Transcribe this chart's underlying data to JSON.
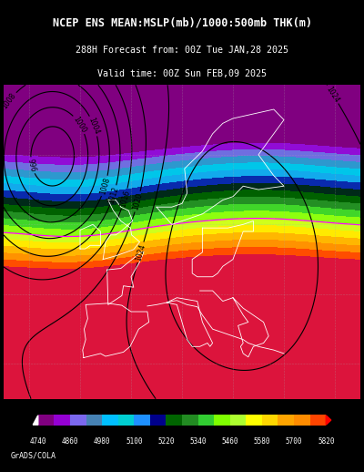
{
  "title_line1": "NCEP ENS MEAN:MSLP(mb)/1000:500mb THK(m)",
  "title_line2": "288H Forecast from: 00Z Tue JAN,28 2025",
  "title_line3": "Valid time: 00Z Sun FEB,09 2025",
  "colorbar_values": [
    4740,
    4860,
    4980,
    5100,
    5220,
    5340,
    5460,
    5580,
    5700,
    5820
  ],
  "colorbar_colors": [
    "#9400D3",
    "#8B00FF",
    "#7B68EE",
    "#6495ED",
    "#00BFFF",
    "#00CED1",
    "#1E90FF",
    "#00008B",
    "#006400",
    "#228B22",
    "#32CD32",
    "#7CFC00",
    "#ADFF2F",
    "#FFFF00",
    "#FFD700",
    "#FFA500",
    "#FF8C00",
    "#FF4500",
    "#DC143C"
  ],
  "background_color": "#000000",
  "map_bg": "#000033",
  "credit": "GrADS/COLA",
  "figsize": [
    4.0,
    5.18
  ],
  "dpi": 100
}
